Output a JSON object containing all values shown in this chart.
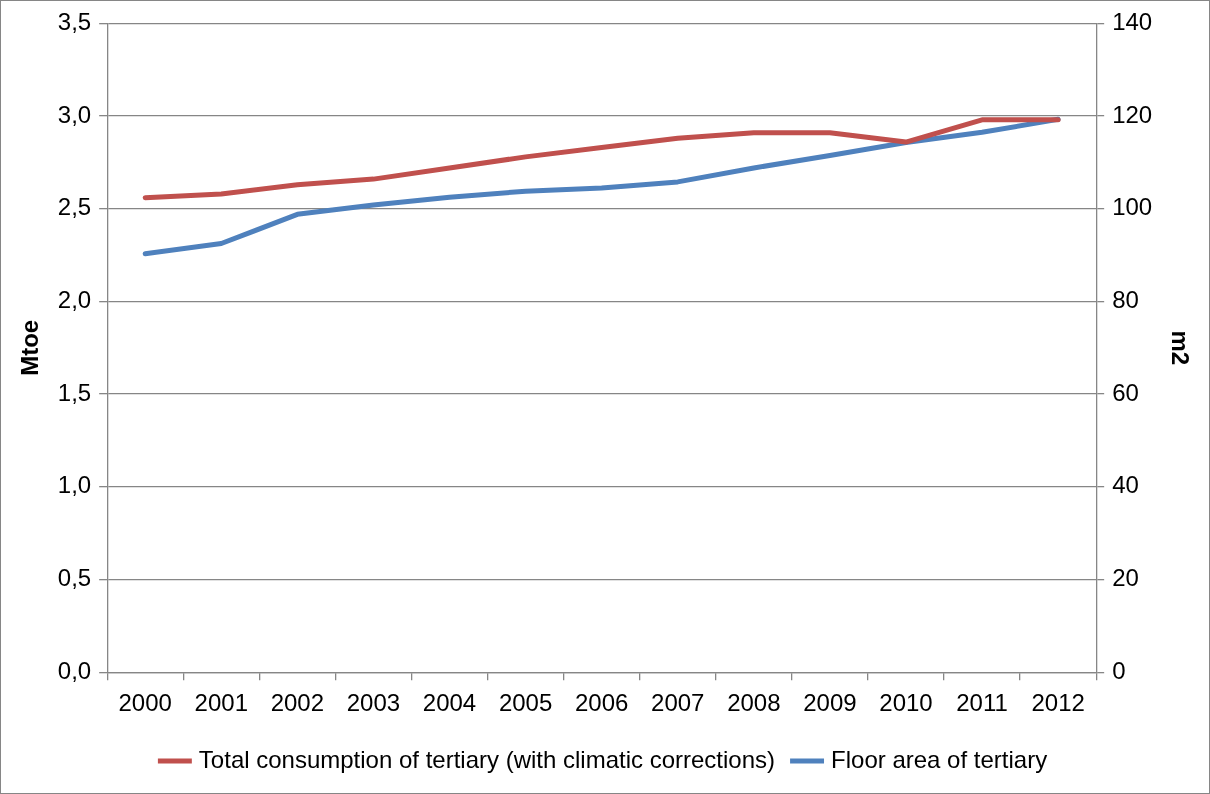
{
  "chart_data": {
    "type": "line",
    "ylabel": "Mtoe",
    "y2label": "m2",
    "categories": [
      "2000",
      "2001",
      "2002",
      "2003",
      "2004",
      "2005",
      "2006",
      "2007",
      "2008",
      "2009",
      "2010",
      "2011",
      "2012"
    ],
    "series": [
      {
        "name": "Total consumption of tertiary (with climatic corrections)",
        "color": "#c0504d",
        "values": [
          2.56,
          2.58,
          2.63,
          2.66,
          2.72,
          2.78,
          2.83,
          2.88,
          2.91,
          2.91,
          2.86,
          2.98,
          2.98
        ]
      },
      {
        "name": "Floor area of tertiary",
        "color": "#4f81bd",
        "axis": "y2",
        "values": [
          90.3,
          92.5,
          98.8,
          100.8,
          102.5,
          103.8,
          104.5,
          105.8,
          108.8,
          111.5,
          114.3,
          116.5,
          119.3
        ]
      }
    ],
    "ylim": [
      0,
      3.5
    ],
    "yticks": [
      {
        "value": 0,
        "label": "0,0"
      },
      {
        "value": 0.5,
        "label": "0,5"
      },
      {
        "value": 1,
        "label": "1,0"
      },
      {
        "value": 1.5,
        "label": "1,5"
      },
      {
        "value": 2,
        "label": "2,0"
      },
      {
        "value": 2.5,
        "label": "2,5"
      },
      {
        "value": 3,
        "label": "3,0"
      },
      {
        "value": 3.5,
        "label": "3,5"
      }
    ],
    "y2lim": [
      0,
      140
    ],
    "y2ticks": [
      0,
      20,
      40,
      60,
      80,
      100,
      120,
      140
    ],
    "grid": "y",
    "legend": "bottom",
    "marker": "none",
    "line_style": "solid"
  }
}
